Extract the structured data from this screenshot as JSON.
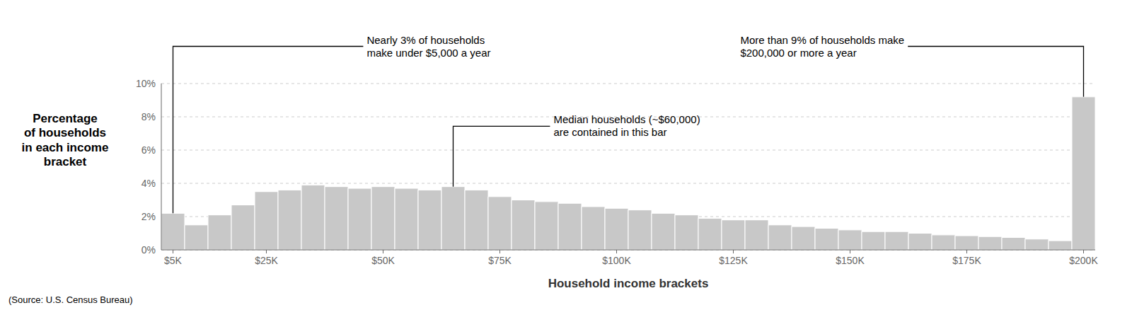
{
  "chart_data": {
    "type": "bar",
    "categories": [
      "$5K",
      null,
      null,
      null,
      "$25K",
      null,
      null,
      null,
      null,
      "$50K",
      null,
      null,
      null,
      null,
      "$75K",
      null,
      null,
      null,
      null,
      "$100K",
      null,
      null,
      null,
      null,
      "$125K",
      null,
      null,
      null,
      null,
      "$150K",
      null,
      null,
      null,
      null,
      "$175K",
      null,
      null,
      null,
      null,
      "$200K"
    ],
    "values": [
      2.2,
      1.5,
      2.1,
      2.7,
      3.5,
      3.6,
      3.9,
      3.8,
      3.7,
      3.8,
      3.7,
      3.6,
      3.8,
      3.6,
      3.2,
      3.0,
      2.9,
      2.8,
      2.6,
      2.5,
      2.4,
      2.2,
      2.1,
      1.9,
      1.8,
      1.8,
      1.5,
      1.4,
      1.3,
      1.2,
      1.1,
      1.1,
      1.0,
      0.9,
      0.85,
      0.8,
      0.75,
      0.65,
      0.55,
      9.2
    ],
    "color": "#c8c8c8",
    "ylim": [
      0,
      10
    ],
    "yticks": [
      {
        "value": 0,
        "label": "0%"
      },
      {
        "value": 2,
        "label": "2%"
      },
      {
        "value": 4,
        "label": "4%"
      },
      {
        "value": 6,
        "label": "6%"
      },
      {
        "value": 8,
        "label": "8%"
      },
      {
        "value": 10,
        "label": "10%"
      }
    ],
    "grid": true,
    "xlabel": "Household income brackets",
    "ylabel": "Percentage\nof households\nin each income\nbracket",
    "source": "(Source: U.S. Census Bureau)",
    "annotations": [
      {
        "text": "Nearly 3% of households\nmake under $5,000 a year",
        "x": 0,
        "y": 2.2
      },
      {
        "text": "More than 9% of households make\n$200,000 or more a year",
        "x": 39,
        "y": 9.2
      },
      {
        "text": "Median households (~$60,000)\nare contained in this bar",
        "x": 12,
        "y": 3.8
      }
    ]
  }
}
